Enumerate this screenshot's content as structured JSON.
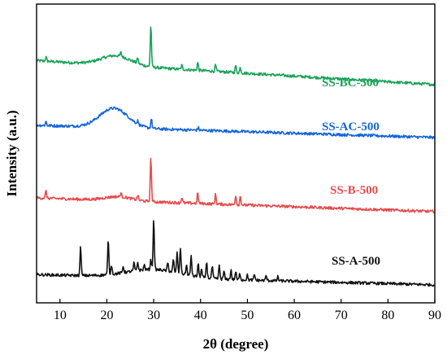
{
  "chart_data": {
    "type": "line",
    "xlabel": "2θ (degree)",
    "ylabel": "Intensity (a.u.)",
    "xlim": [
      5,
      90
    ],
    "x_ticks": [
      "10",
      "20",
      "30",
      "40",
      "50",
      "60",
      "70",
      "80",
      "90"
    ],
    "y_ticks": [],
    "grid": false,
    "legend": "inline labels at right of each curve",
    "series": [
      {
        "name": "SS-BC-500",
        "color": "#1aa35a",
        "baseline": 3.0,
        "hump": {
          "center": 22,
          "width": 4.5,
          "height": 0.12
        },
        "slope": -0.0035,
        "peaks": [
          [
            7.0,
            0.05
          ],
          [
            23.0,
            0.05
          ],
          [
            26.6,
            0.07
          ],
          [
            29.4,
            0.52
          ],
          [
            36.0,
            0.05
          ],
          [
            39.4,
            0.1
          ],
          [
            43.2,
            0.08
          ],
          [
            47.5,
            0.09
          ],
          [
            48.5,
            0.07
          ]
        ]
      },
      {
        "name": "SS-AC-500",
        "color": "#1565d8",
        "baseline": 2.2,
        "hump": {
          "center": 21.5,
          "width": 4.2,
          "height": 0.24
        },
        "slope": -0.0018,
        "peaks": [
          [
            7.0,
            0.05
          ],
          [
            26.6,
            0.04
          ],
          [
            29.5,
            0.12
          ],
          [
            39.5,
            0.03
          ]
        ]
      },
      {
        "name": "SS-B-500",
        "color": "#e84a4a",
        "baseline": 1.3,
        "hump": {
          "center": 22.5,
          "width": 4,
          "height": 0.05
        },
        "slope": -0.002,
        "peaks": [
          [
            7.0,
            0.09
          ],
          [
            23.0,
            0.05
          ],
          [
            26.6,
            0.06
          ],
          [
            29.4,
            0.55
          ],
          [
            36.0,
            0.07
          ],
          [
            39.4,
            0.13
          ],
          [
            43.2,
            0.12
          ],
          [
            47.5,
            0.12
          ],
          [
            48.5,
            0.11
          ]
        ]
      },
      {
        "name": "SS-A-500",
        "color": "#111111",
        "baseline": 0.35,
        "hump": {
          "center": 30,
          "width": 8,
          "height": 0.1
        },
        "slope": -0.0015,
        "peaks": [
          [
            14.4,
            0.36
          ],
          [
            20.3,
            0.44
          ],
          [
            21.0,
            0.12
          ],
          [
            23.5,
            0.08
          ],
          [
            25.8,
            0.1
          ],
          [
            26.6,
            0.1
          ],
          [
            28.0,
            0.06
          ],
          [
            29.4,
            0.12
          ],
          [
            30.0,
            0.62
          ],
          [
            33.0,
            0.1
          ],
          [
            34.2,
            0.15
          ],
          [
            35.0,
            0.25
          ],
          [
            35.7,
            0.32
          ],
          [
            37.0,
            0.12
          ],
          [
            38.0,
            0.25
          ],
          [
            39.5,
            0.16
          ],
          [
            40.2,
            0.1
          ],
          [
            41.3,
            0.2
          ],
          [
            42.5,
            0.15
          ],
          [
            44.0,
            0.16
          ],
          [
            45.0,
            0.1
          ],
          [
            46.5,
            0.12
          ],
          [
            47.5,
            0.1
          ],
          [
            48.4,
            0.08
          ],
          [
            50.0,
            0.06
          ],
          [
            51.5,
            0.07
          ],
          [
            54.0,
            0.06
          ],
          [
            56.5,
            0.05
          ]
        ]
      }
    ],
    "colors": {
      "axis": "#000000",
      "background": "#ffffff"
    }
  }
}
